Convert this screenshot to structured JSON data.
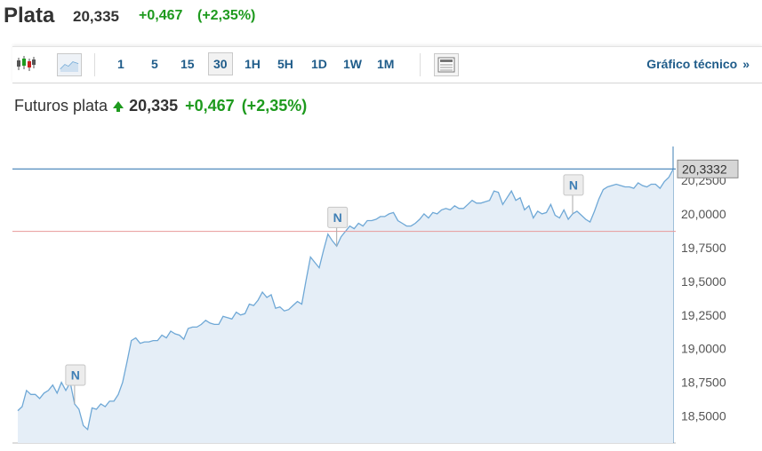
{
  "header": {
    "title": "Plata",
    "price": "20,335",
    "change": "+0,467",
    "change_pct": "(+2,35%)"
  },
  "toolbar": {
    "ranges": [
      "1",
      "5",
      "15",
      "30",
      "1H",
      "5H",
      "1D",
      "1W",
      "1M"
    ],
    "active_range": "30",
    "technical_link": "Gráfico técnico",
    "technical_arrow": "»"
  },
  "chart_title": {
    "label": "Futuros plata",
    "price": "20,335",
    "change": "+0,467",
    "change_pct": "(+2,35%)"
  },
  "colors": {
    "up": "#1e9a1e",
    "line": "#6fa8d6",
    "fill": "#e5eef7",
    "ref_line": "#e89a9a",
    "current_line": "#3e7fb6"
  },
  "chart_data": {
    "type": "area",
    "ylim": [
      18.3,
      20.5
    ],
    "y_ticks": [
      18.5,
      18.75,
      19.0,
      19.25,
      19.5,
      19.75,
      20.0,
      20.25
    ],
    "y_tick_labels": [
      "18,5000",
      "18,7500",
      "19,0000",
      "19,2500",
      "19,5000",
      "19,7500",
      "20,0000",
      "20,2500"
    ],
    "current_value": 20.3332,
    "current_value_label": "20,3332",
    "reference_value": 19.87,
    "news_markers": [
      {
        "label": "N",
        "index": 13
      },
      {
        "label": "N",
        "index": 73
      },
      {
        "label": "N",
        "index": 127
      }
    ],
    "values": [
      18.54,
      18.57,
      18.69,
      18.66,
      18.66,
      18.63,
      18.67,
      18.69,
      18.73,
      18.67,
      18.75,
      18.69,
      18.75,
      18.59,
      18.55,
      18.43,
      18.4,
      18.56,
      18.55,
      18.59,
      18.57,
      18.61,
      18.61,
      18.66,
      18.75,
      18.9,
      19.06,
      19.08,
      19.04,
      19.05,
      19.05,
      19.06,
      19.06,
      19.1,
      19.08,
      19.13,
      19.11,
      19.1,
      19.07,
      19.15,
      19.16,
      19.16,
      19.18,
      19.21,
      19.19,
      19.18,
      19.18,
      19.24,
      19.23,
      19.22,
      19.27,
      19.25,
      19.26,
      19.33,
      19.32,
      19.36,
      19.42,
      19.38,
      19.4,
      19.3,
      19.31,
      19.28,
      19.29,
      19.32,
      19.35,
      19.33,
      19.51,
      19.68,
      19.64,
      19.6,
      19.73,
      19.85,
      19.8,
      19.76,
      19.83,
      19.87,
      19.91,
      19.89,
      19.93,
      19.91,
      19.95,
      19.95,
      19.96,
      19.98,
      19.98,
      20.0,
      20.01,
      19.95,
      19.93,
      19.91,
      19.91,
      19.93,
      19.96,
      20.0,
      19.97,
      20.01,
      20.0,
      20.03,
      20.04,
      20.03,
      20.06,
      20.04,
      20.04,
      20.07,
      20.1,
      20.08,
      20.08,
      20.09,
      20.1,
      20.17,
      20.16,
      20.07,
      20.12,
      20.17,
      20.1,
      20.12,
      20.03,
      20.06,
      19.97,
      20.02,
      20.0,
      20.01,
      20.07,
      19.99,
      19.97,
      20.03,
      19.96,
      20.0,
      20.02,
      19.99,
      19.96,
      19.94,
      20.02,
      20.11,
      20.18,
      20.2,
      20.21,
      20.22,
      20.21,
      20.2,
      20.2,
      20.19,
      20.23,
      20.21,
      20.2,
      20.22,
      20.22,
      20.19,
      20.24,
      20.27,
      20.33
    ]
  }
}
